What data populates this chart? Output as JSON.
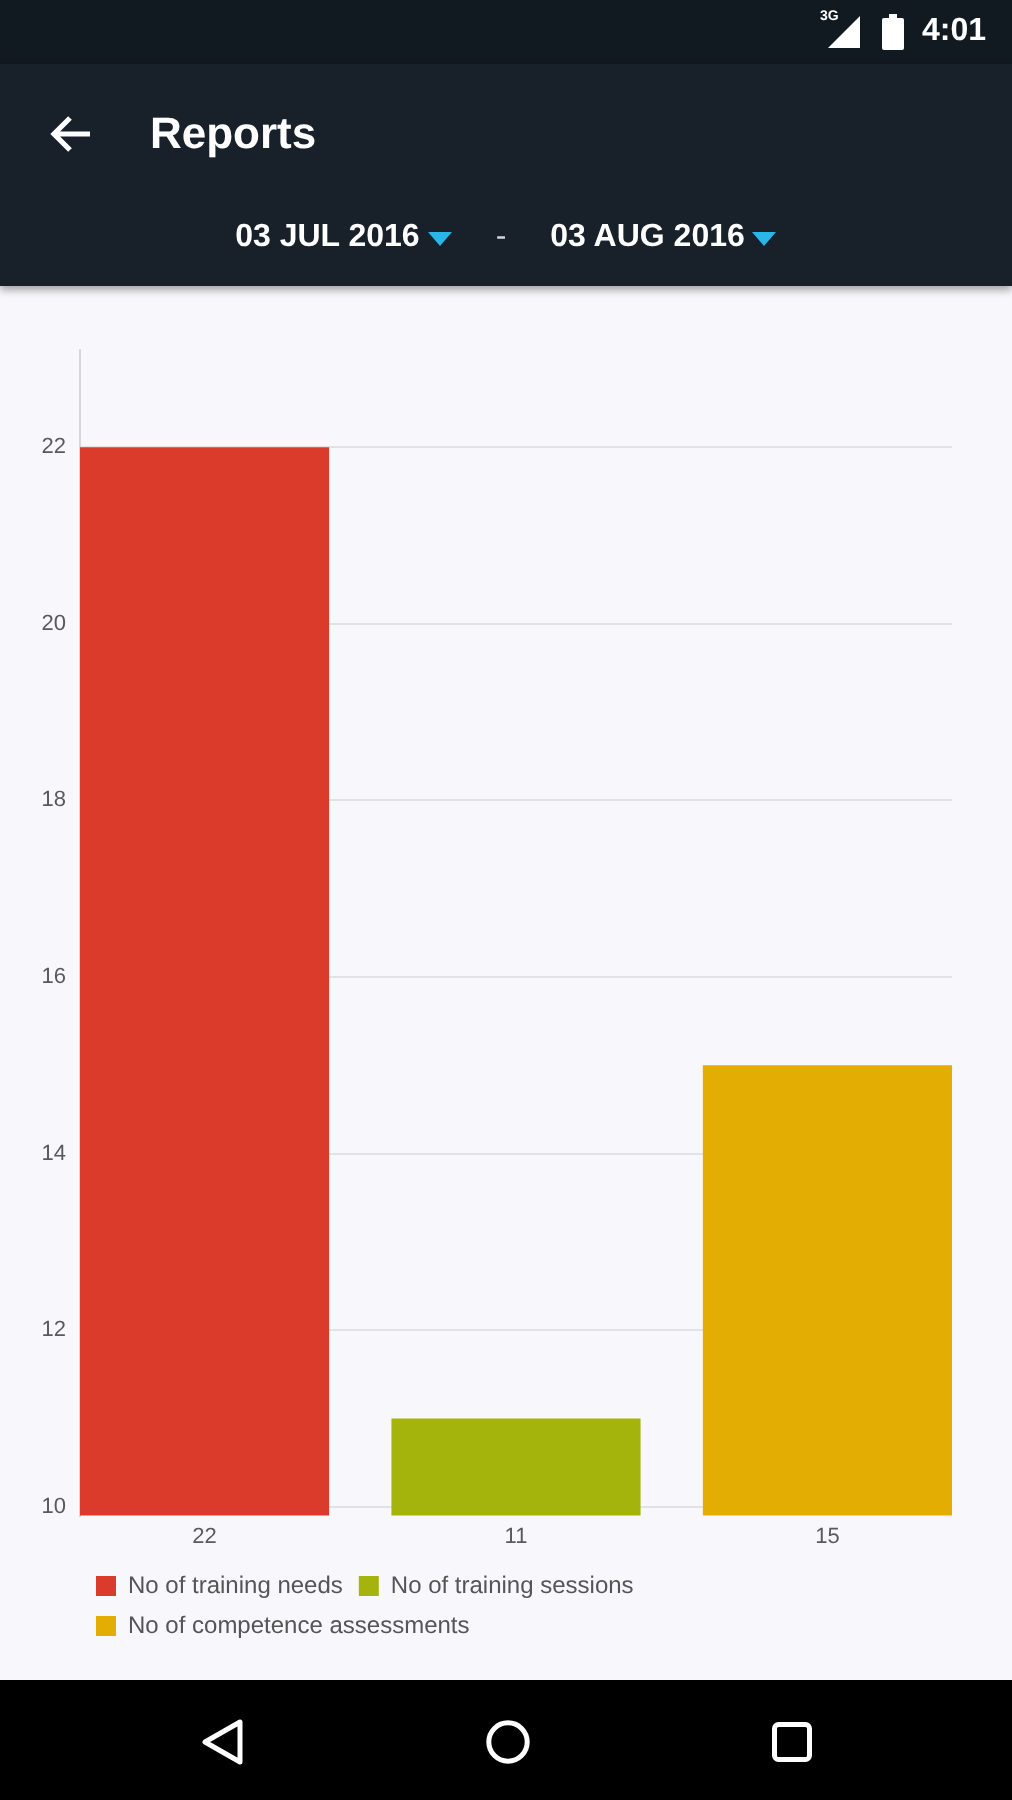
{
  "chart_data": {
    "type": "bar",
    "title": "Reports",
    "categories": [
      "22",
      "11",
      "15"
    ],
    "series": [
      {
        "name": "No of training needs",
        "color": "#da3b2b",
        "values": [
          22,
          null,
          null
        ]
      },
      {
        "name": "No of training sessions",
        "color": "#a4b40c",
        "values": [
          null,
          11,
          null
        ]
      },
      {
        "name": "No of competence assessments",
        "color": "#e4ad04",
        "values": [
          null,
          null,
          15
        ]
      }
    ],
    "ylim": [
      9.9,
      23.1
    ],
    "yticks": [
      10,
      12,
      14,
      16,
      18,
      20,
      22
    ],
    "grid": "y",
    "legend": "bottom left",
    "annotations": [
      "3G",
      "4:01",
      "03 JUL 2016",
      "-",
      "03 AUG 2016"
    ]
  }
}
